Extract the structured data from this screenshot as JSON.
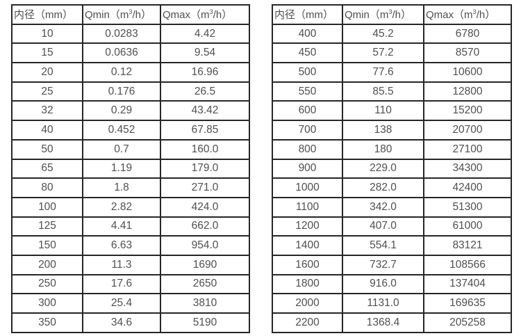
{
  "page": {
    "background_color": "#ffffff",
    "text_color": "#4f4f4f",
    "border_color": "#262626"
  },
  "tables": [
    {
      "name": "flow-table-small-diameters",
      "headers": [
        {
          "label": "内径",
          "unit_pre": "（mm）",
          "sup": "",
          "unit_post": ""
        },
        {
          "label": "Qmin",
          "unit_pre": "（m",
          "sup": "3",
          "unit_post": "/h）"
        },
        {
          "label": "Qmax",
          "unit_pre": "（m",
          "sup": "3",
          "unit_post": "/h）"
        }
      ],
      "rows": [
        [
          "10",
          "0.0283",
          "4.42"
        ],
        [
          "15",
          "0.0636",
          "9.54"
        ],
        [
          "20",
          "0.12",
          "16.96"
        ],
        [
          "25",
          "0.176",
          "26.5"
        ],
        [
          "32",
          "0.29",
          "43.42"
        ],
        [
          "40",
          "0.452",
          "67.85"
        ],
        [
          "50",
          "0.7",
          "160.0"
        ],
        [
          "65",
          "1.19",
          "179.0"
        ],
        [
          "80",
          "1.8",
          "271.0"
        ],
        [
          "100",
          "2.82",
          "424.0"
        ],
        [
          "125",
          "4.41",
          "662.0"
        ],
        [
          "150",
          "6.63",
          "954.0"
        ],
        [
          "200",
          "11.3",
          "1690"
        ],
        [
          "250",
          "17.6",
          "2650"
        ],
        [
          "300",
          "25.4",
          "3810"
        ],
        [
          "350",
          "34.6",
          "5190"
        ]
      ]
    },
    {
      "name": "flow-table-large-diameters",
      "headers": [
        {
          "label": "内径",
          "unit_pre": "（mm）",
          "sup": "",
          "unit_post": ""
        },
        {
          "label": "Qmin",
          "unit_pre": "（m",
          "sup": "3",
          "unit_post": "/h）"
        },
        {
          "label": "Qmax",
          "unit_pre": "（m",
          "sup": "3",
          "unit_post": "/h）"
        }
      ],
      "rows": [
        [
          "400",
          "45.2",
          "6780"
        ],
        [
          "450",
          "57.2",
          "8570"
        ],
        [
          "500",
          "77.6",
          "10600"
        ],
        [
          "550",
          "85.5",
          "12800"
        ],
        [
          "600",
          "110",
          "15200"
        ],
        [
          "700",
          "138",
          "20700"
        ],
        [
          "800",
          "180",
          "27100"
        ],
        [
          "900",
          "229.0",
          "34300"
        ],
        [
          "1000",
          "282.0",
          "42400"
        ],
        [
          "1100",
          "342.0",
          "51300"
        ],
        [
          "1200",
          "407.0",
          "61000"
        ],
        [
          "1400",
          "554.1",
          "83121"
        ],
        [
          "1600",
          "732.7",
          "108566"
        ],
        [
          "1800",
          "916.0",
          "137404"
        ],
        [
          "2000",
          "1131.0",
          "169635"
        ],
        [
          "2200",
          "1368.4",
          "205258"
        ]
      ]
    }
  ]
}
